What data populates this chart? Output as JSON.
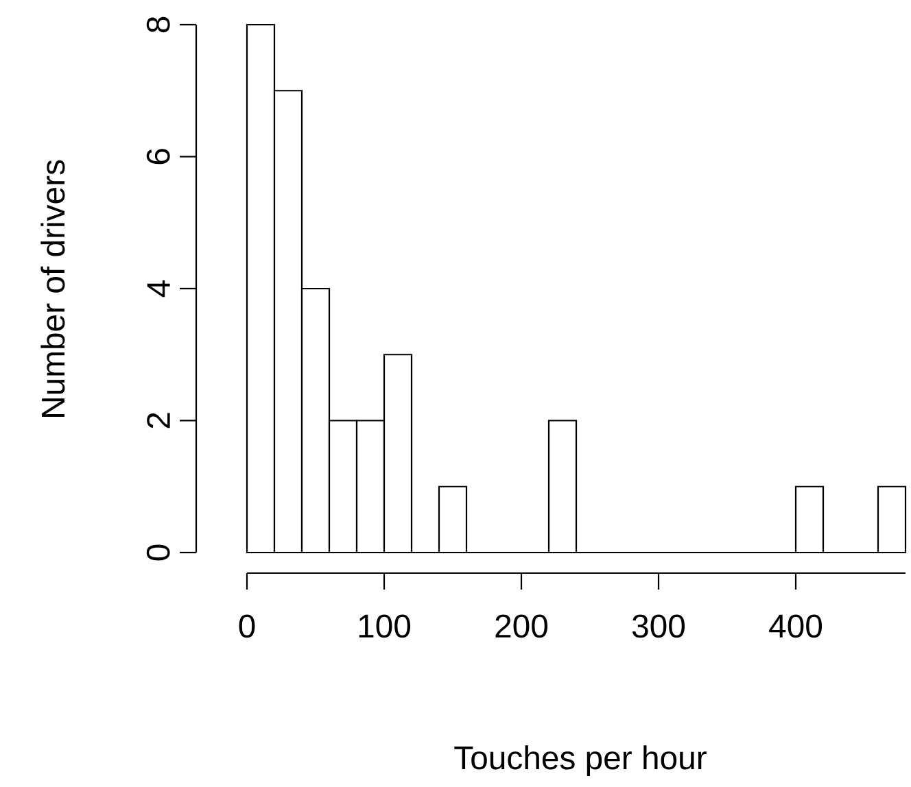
{
  "chart_data": {
    "type": "histogram",
    "xlabel": "Touches per hour",
    "ylabel": "Number of drivers",
    "bins": [
      0,
      20,
      40,
      60,
      80,
      100,
      120,
      140,
      160,
      180,
      200,
      220,
      240,
      260,
      280,
      300,
      320,
      340,
      360,
      380,
      400,
      420,
      440,
      460,
      480
    ],
    "values": [
      8,
      7,
      4,
      2,
      2,
      3,
      0,
      1,
      0,
      0,
      0,
      2,
      0,
      0,
      0,
      0,
      0,
      0,
      0,
      0,
      1,
      0,
      0,
      1
    ],
    "xlim": [
      0,
      480
    ],
    "ylim": [
      0,
      8
    ],
    "xticks": [
      0,
      100,
      200,
      300,
      400
    ],
    "yticks": [
      0,
      2,
      4,
      6,
      8
    ]
  }
}
